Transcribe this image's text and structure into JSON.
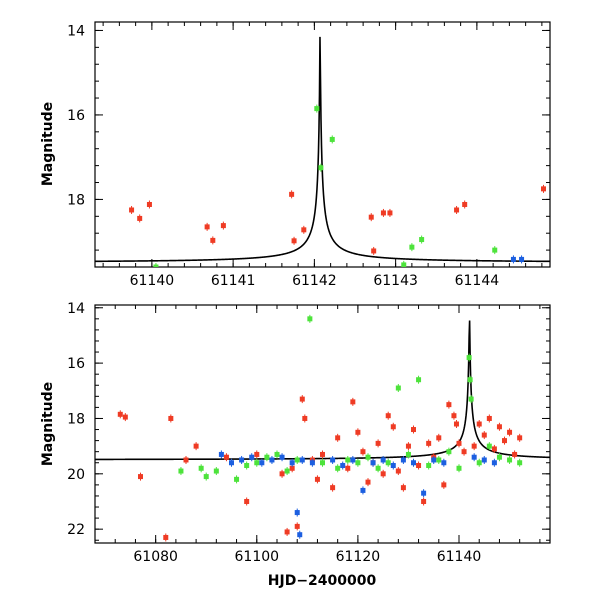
{
  "colors": {
    "red": "#ef3b24",
    "green": "#4de33b",
    "blue": "#1c5fe0",
    "curve": "#000000"
  },
  "chart_data": [
    {
      "type": "scatter",
      "panel": "top",
      "title": "",
      "xlabel": "",
      "ylabel": "Magnitude",
      "xlim": [
        61139.3,
        61144.9
      ],
      "ylim": [
        19.6,
        13.8
      ],
      "x_ticks": [
        61140,
        61141,
        61142,
        61143,
        61144
      ],
      "y_ticks": [
        14,
        16,
        18
      ],
      "model_curve": {
        "t0": 61142.07,
        "baseline": 19.5,
        "peak": 13.8
      },
      "series": [
        {
          "name": "red",
          "color": "#ef3b24",
          "points": [
            [
              61139.75,
              18.25
            ],
            [
              61139.85,
              18.45
            ],
            [
              61139.97,
              18.12
            ],
            [
              61140.68,
              18.65
            ],
            [
              61140.75,
              18.97
            ],
            [
              61140.88,
              18.62
            ],
            [
              61141.72,
              17.88
            ],
            [
              61141.75,
              18.98
            ],
            [
              61141.87,
              18.72
            ],
            [
              61142.7,
              18.42
            ],
            [
              61142.73,
              19.22
            ],
            [
              61142.85,
              18.32
            ],
            [
              61142.93,
              18.32
            ],
            [
              61143.75,
              18.25
            ],
            [
              61143.85,
              18.12
            ],
            [
              61144.82,
              17.75
            ]
          ]
        },
        {
          "name": "green",
          "color": "#4de33b",
          "points": [
            [
              61140.05,
              19.6
            ],
            [
              61142.03,
              15.85
            ],
            [
              61142.08,
              17.25
            ],
            [
              61142.22,
              16.58
            ],
            [
              61143.1,
              19.55
            ],
            [
              61143.2,
              19.13
            ],
            [
              61143.32,
              18.95
            ],
            [
              61144.22,
              19.2
            ]
          ]
        },
        {
          "name": "blue",
          "color": "#1c5fe0",
          "points": [
            [
              61144.45,
              19.42
            ],
            [
              61144.55,
              19.42
            ]
          ]
        }
      ]
    },
    {
      "type": "scatter",
      "panel": "bottom",
      "title": "",
      "xlabel": "HJD−2400000",
      "ylabel": "Magnitude",
      "xlim": [
        61068,
        61158
      ],
      "ylim": [
        22.5,
        13.9
      ],
      "x_ticks": [
        61080,
        61100,
        61120,
        61140
      ],
      "y_ticks": [
        14,
        16,
        18,
        20,
        22
      ],
      "baseline_mag": 19.5,
      "model_curve": {
        "t0": 61142.07,
        "baseline": 19.5,
        "peak": 13.9
      },
      "series": [
        {
          "name": "red",
          "color": "#ef3b24",
          "points": [
            [
              61073,
              17.85
            ],
            [
              61074,
              17.95
            ],
            [
              61077,
              20.1
            ],
            [
              61082,
              22.3
            ],
            [
              61083,
              18.0
            ],
            [
              61086,
              19.5
            ],
            [
              61088,
              19.0
            ],
            [
              61094,
              19.4
            ],
            [
              61098,
              21.0
            ],
            [
              61100,
              19.3
            ],
            [
              61105,
              20.0
            ],
            [
              61106,
              22.1
            ],
            [
              61107,
              19.8
            ],
            [
              61108,
              21.9
            ],
            [
              61109,
              17.3
            ],
            [
              61109.5,
              18.0
            ],
            [
              61111,
              19.5
            ],
            [
              61112,
              20.2
            ],
            [
              61113,
              19.3
            ],
            [
              61115,
              20.5
            ],
            [
              61116,
              18.7
            ],
            [
              61118,
              19.8
            ],
            [
              61119,
              17.4
            ],
            [
              61120,
              18.5
            ],
            [
              61121,
              19.2
            ],
            [
              61122,
              20.3
            ],
            [
              61123,
              19.6
            ],
            [
              61124,
              18.9
            ],
            [
              61125,
              20.0
            ],
            [
              61126,
              17.9
            ],
            [
              61127,
              18.3
            ],
            [
              61128,
              19.9
            ],
            [
              61129,
              20.5
            ],
            [
              61130,
              19.0
            ],
            [
              61131,
              18.4
            ],
            [
              61132,
              19.7
            ],
            [
              61133,
              21.0
            ],
            [
              61134,
              18.9
            ],
            [
              61135,
              19.4
            ],
            [
              61136,
              18.7
            ],
            [
              61137,
              20.4
            ],
            [
              61138,
              17.5
            ],
            [
              61139,
              17.9
            ],
            [
              61139.5,
              18.2
            ],
            [
              61140,
              18.9
            ],
            [
              61141,
              19.2
            ],
            [
              61143,
              19.0
            ],
            [
              61144,
              18.2
            ],
            [
              61145,
              18.6
            ],
            [
              61146,
              18.0
            ],
            [
              61147,
              19.1
            ],
            [
              61148,
              18.3
            ],
            [
              61149,
              18.8
            ],
            [
              61150,
              18.5
            ],
            [
              61151,
              19.3
            ],
            [
              61152,
              18.7
            ]
          ]
        },
        {
          "name": "green",
          "color": "#4de33b",
          "points": [
            [
              61085,
              19.9
            ],
            [
              61089,
              19.8
            ],
            [
              61090,
              20.1
            ],
            [
              61092,
              19.9
            ],
            [
              61096,
              20.2
            ],
            [
              61098,
              19.7
            ],
            [
              61100,
              19.6
            ],
            [
              61102,
              19.4
            ],
            [
              61104,
              19.3
            ],
            [
              61106,
              19.9
            ],
            [
              61108,
              19.5
            ],
            [
              61110.5,
              14.4
            ],
            [
              61113,
              19.6
            ],
            [
              61116,
              19.8
            ],
            [
              61118,
              19.5
            ],
            [
              61120,
              19.6
            ],
            [
              61122,
              19.4
            ],
            [
              61124,
              19.8
            ],
            [
              61126,
              19.6
            ],
            [
              61128,
              16.9
            ],
            [
              61130,
              19.3
            ],
            [
              61132,
              16.6
            ],
            [
              61134,
              19.7
            ],
            [
              61136,
              19.5
            ],
            [
              61138,
              19.2
            ],
            [
              61140,
              19.8
            ],
            [
              61142,
              15.8
            ],
            [
              61142.2,
              16.6
            ],
            [
              61142.4,
              17.3
            ],
            [
              61144,
              19.6
            ],
            [
              61146,
              19.0
            ],
            [
              61148,
              19.4
            ],
            [
              61150,
              19.5
            ],
            [
              61152,
              19.6
            ]
          ]
        },
        {
          "name": "blue",
          "color": "#1c5fe0",
          "points": [
            [
              61093,
              19.3
            ],
            [
              61095,
              19.6
            ],
            [
              61097,
              19.5
            ],
            [
              61099,
              19.4
            ],
            [
              61101,
              19.6
            ],
            [
              61103,
              19.5
            ],
            [
              61105,
              19.4
            ],
            [
              61107,
              19.6
            ],
            [
              61108,
              21.4
            ],
            [
              61108.5,
              22.2
            ],
            [
              61109,
              19.5
            ],
            [
              61111,
              19.6
            ],
            [
              61115,
              19.5
            ],
            [
              61117,
              19.7
            ],
            [
              61119,
              19.5
            ],
            [
              61121,
              20.6
            ],
            [
              61123,
              19.6
            ],
            [
              61125,
              19.5
            ],
            [
              61127,
              19.7
            ],
            [
              61129,
              19.5
            ],
            [
              61131,
              19.6
            ],
            [
              61133,
              20.7
            ],
            [
              61135,
              19.5
            ],
            [
              61137,
              19.6
            ],
            [
              61143,
              19.4
            ],
            [
              61145,
              19.5
            ],
            [
              61147,
              19.6
            ]
          ]
        }
      ]
    }
  ]
}
